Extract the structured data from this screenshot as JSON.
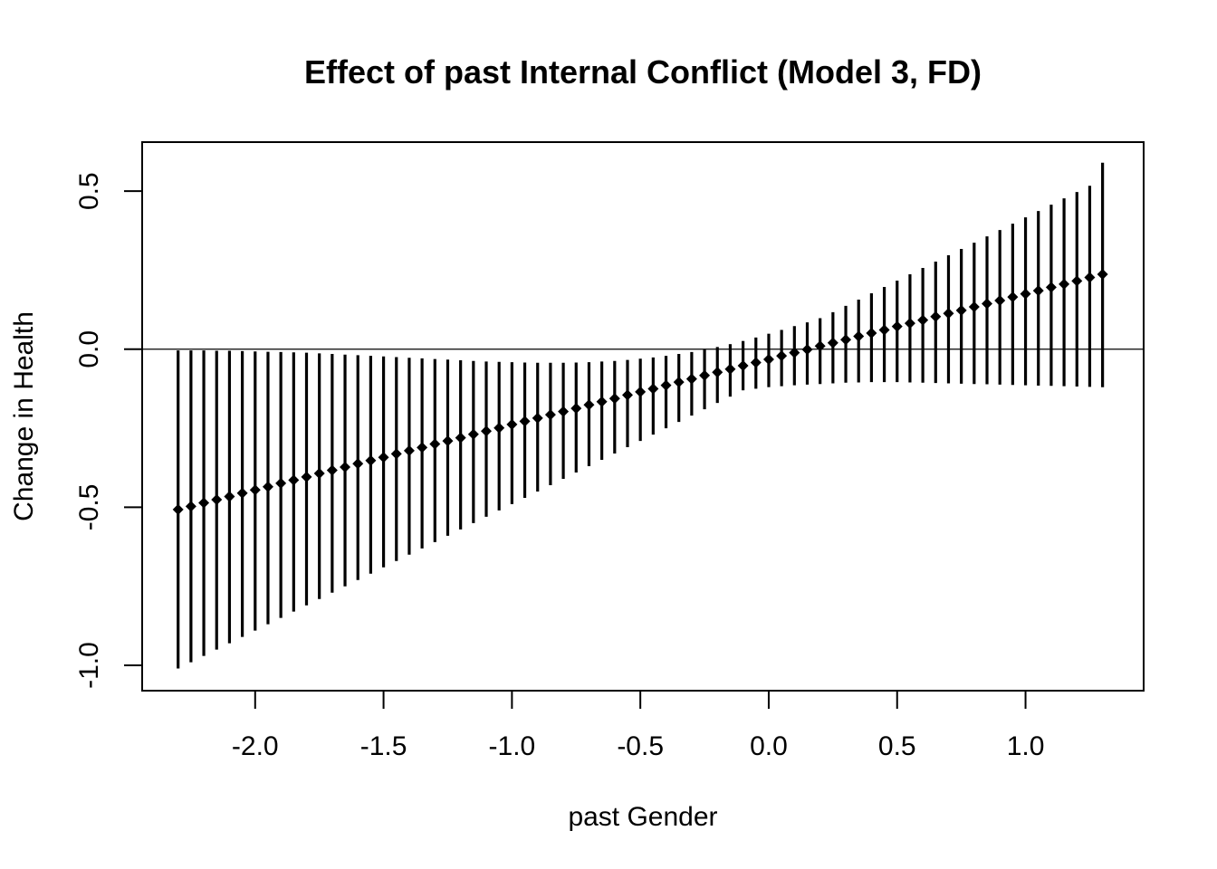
{
  "chart_data": {
    "type": "scatter",
    "title": "Effect of past Internal Conflict (Model 3, FD)",
    "xlabel": "past Gender",
    "ylabel": "Change in Health",
    "xlim": [
      -2.44,
      1.46
    ],
    "ylim": [
      -1.08,
      0.655
    ],
    "x_ticks": [
      -2.0,
      -1.5,
      -1.0,
      -0.5,
      0.0,
      0.5,
      1.0
    ],
    "x_tick_labels": [
      "-2.0",
      "-1.5",
      "-1.0",
      "-0.5",
      "0.0",
      "0.5",
      "1.0"
    ],
    "y_ticks": [
      -1.0,
      -0.5,
      0.0,
      0.5
    ],
    "y_tick_labels": [
      "-1.0",
      "-0.5",
      "0.0",
      "0.5"
    ],
    "reference_line_y": 0.0,
    "grid": false,
    "legend": "none",
    "series": [
      {
        "marker": "diamond",
        "error_bars": "vertical",
        "x": [
          -2.3,
          -2.25,
          -2.2,
          -2.15,
          -2.1,
          -2.05,
          -2.0,
          -1.95,
          -1.9,
          -1.85,
          -1.8,
          -1.75,
          -1.7,
          -1.65,
          -1.6,
          -1.55,
          -1.5,
          -1.45,
          -1.4,
          -1.35,
          -1.3,
          -1.25,
          -1.2,
          -1.15,
          -1.1,
          -1.05,
          -1.0,
          -0.95,
          -0.9,
          -0.85,
          -0.8,
          -0.75,
          -0.7,
          -0.65,
          -0.6,
          -0.55,
          -0.5,
          -0.45,
          -0.4,
          -0.35,
          -0.3,
          -0.25,
          -0.2,
          -0.15,
          -0.1,
          -0.05,
          0.0,
          0.05,
          0.1,
          0.15,
          0.2,
          0.25,
          0.3,
          0.35,
          0.4,
          0.45,
          0.5,
          0.55,
          0.6,
          0.65,
          0.7,
          0.75,
          0.8,
          0.85,
          0.9,
          0.95,
          1.0,
          1.05,
          1.1,
          1.15,
          1.2,
          1.25,
          1.3
        ],
        "y": [
          -0.507,
          -0.497,
          -0.486,
          -0.476,
          -0.466,
          -0.455,
          -0.445,
          -0.435,
          -0.424,
          -0.414,
          -0.404,
          -0.393,
          -0.383,
          -0.373,
          -0.362,
          -0.352,
          -0.342,
          -0.331,
          -0.321,
          -0.311,
          -0.3,
          -0.29,
          -0.28,
          -0.269,
          -0.259,
          -0.249,
          -0.238,
          -0.228,
          -0.218,
          -0.207,
          -0.197,
          -0.187,
          -0.176,
          -0.166,
          -0.156,
          -0.145,
          -0.135,
          -0.125,
          -0.114,
          -0.104,
          -0.094,
          -0.083,
          -0.073,
          -0.063,
          -0.052,
          -0.042,
          -0.032,
          -0.021,
          -0.011,
          -0.001,
          0.01,
          0.02,
          0.03,
          0.041,
          0.051,
          0.061,
          0.072,
          0.082,
          0.092,
          0.103,
          0.113,
          0.123,
          0.134,
          0.144,
          0.154,
          0.165,
          0.175,
          0.185,
          0.196,
          0.206,
          0.216,
          0.227,
          0.237
        ],
        "lower": [
          -1.01,
          -0.99,
          -0.97,
          -0.95,
          -0.93,
          -0.91,
          -0.89,
          -0.87,
          -0.85,
          -0.83,
          -0.81,
          -0.79,
          -0.77,
          -0.75,
          -0.73,
          -0.71,
          -0.69,
          -0.67,
          -0.65,
          -0.63,
          -0.61,
          -0.59,
          -0.57,
          -0.55,
          -0.53,
          -0.51,
          -0.49,
          -0.47,
          -0.45,
          -0.43,
          -0.41,
          -0.39,
          -0.37,
          -0.35,
          -0.33,
          -0.31,
          -0.29,
          -0.27,
          -0.25,
          -0.23,
          -0.21,
          -0.19,
          -0.17,
          -0.15,
          -0.13,
          -0.125,
          -0.12,
          -0.117,
          -0.114,
          -0.112,
          -0.11,
          -0.108,
          -0.106,
          -0.105,
          -0.104,
          -0.104,
          -0.104,
          -0.105,
          -0.106,
          -0.107,
          -0.108,
          -0.109,
          -0.11,
          -0.111,
          -0.112,
          -0.113,
          -0.114,
          -0.115,
          -0.116,
          -0.117,
          -0.118,
          -0.119,
          -0.12
        ],
        "upper": [
          -0.004,
          -0.004,
          -0.004,
          -0.005,
          -0.005,
          -0.006,
          -0.007,
          -0.008,
          -0.009,
          -0.01,
          -0.011,
          -0.013,
          -0.015,
          -0.017,
          -0.019,
          -0.021,
          -0.023,
          -0.025,
          -0.027,
          -0.029,
          -0.031,
          -0.033,
          -0.035,
          -0.037,
          -0.039,
          -0.04,
          -0.041,
          -0.042,
          -0.043,
          -0.043,
          -0.043,
          -0.042,
          -0.041,
          -0.039,
          -0.037,
          -0.034,
          -0.03,
          -0.026,
          -0.021,
          -0.015,
          -0.009,
          -0.001,
          0.007,
          0.016,
          0.026,
          0.037,
          0.049,
          0.061,
          0.073,
          0.085,
          0.098,
          0.117,
          0.137,
          0.157,
          0.177,
          0.197,
          0.217,
          0.237,
          0.257,
          0.277,
          0.297,
          0.317,
          0.337,
          0.357,
          0.377,
          0.397,
          0.417,
          0.437,
          0.457,
          0.477,
          0.497,
          0.517,
          0.59
        ]
      }
    ]
  }
}
